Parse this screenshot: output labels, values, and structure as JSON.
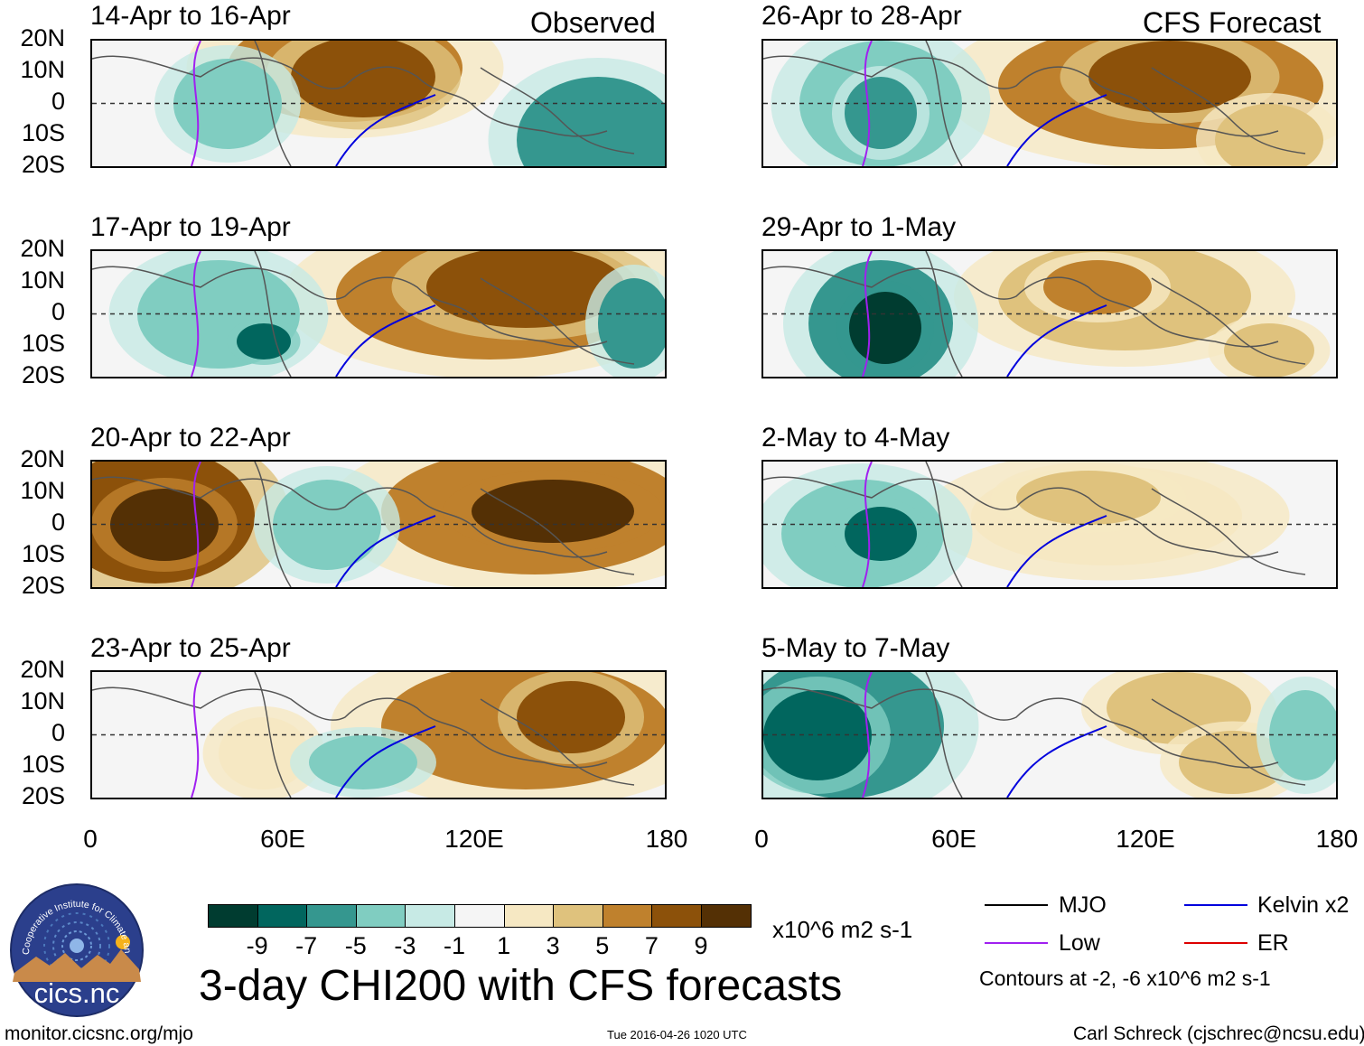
{
  "chart_data": {
    "type": "heatmap",
    "title": "3-day CHI200 with CFS forecasts",
    "units": "x10^6 m2 s-1",
    "column_headers": [
      "Observed",
      "CFS Forecast"
    ],
    "y_tick_labels": [
      "20N",
      "10N",
      "0",
      "10S",
      "20S"
    ],
    "x_tick_labels": [
      "0",
      "60E",
      "120E",
      "180"
    ],
    "xlim": [
      0,
      180
    ],
    "ylim": [
      -20,
      20
    ],
    "panels": [
      {
        "title": "14-Apr to 16-Apr",
        "column": "observed",
        "row": 0
      },
      {
        "title": "17-Apr to 19-Apr",
        "column": "observed",
        "row": 1
      },
      {
        "title": "20-Apr to 22-Apr",
        "column": "observed",
        "row": 2
      },
      {
        "title": "23-Apr to 25-Apr",
        "column": "observed",
        "row": 3
      },
      {
        "title": "26-Apr to 28-Apr",
        "column": "forecast",
        "row": 0
      },
      {
        "title": "29-Apr to 1-May",
        "column": "forecast",
        "row": 1
      },
      {
        "title": "2-May to 4-May",
        "column": "forecast",
        "row": 2
      },
      {
        "title": "5-May to 7-May",
        "column": "forecast",
        "row": 3
      }
    ],
    "colorbar": {
      "labels": [
        "-9",
        "-7",
        "-5",
        "-3",
        "-1",
        "1",
        "3",
        "5",
        "7",
        "9"
      ],
      "colors": [
        "#003c30",
        "#01665e",
        "#35978f",
        "#80cdc1",
        "#c7eae5",
        "#f5f5f5",
        "#f6e8c3",
        "#dfc27d",
        "#bf812d",
        "#8c510a",
        "#543005"
      ]
    },
    "legend": {
      "items": [
        {
          "label": "MJO",
          "color": "#000000"
        },
        {
          "label": "Kelvin x2",
          "color": "#0000dd"
        },
        {
          "label": "Low",
          "color": "#a020f0"
        },
        {
          "label": "ER",
          "color": "#dd0000"
        }
      ],
      "note": "Contours at -2, -6 x10^6 m2 s-1"
    }
  },
  "footer": {
    "left": "monitor.cicsnc.org/mjo",
    "center": "Tue 2016-04-26 1020 UTC",
    "right": "Carl Schreck (cjschrec@ncsu.edu)"
  },
  "logo": {
    "ring_text": "Cooperative Institute for Climate and Satellites",
    "name": "cics.nc"
  }
}
